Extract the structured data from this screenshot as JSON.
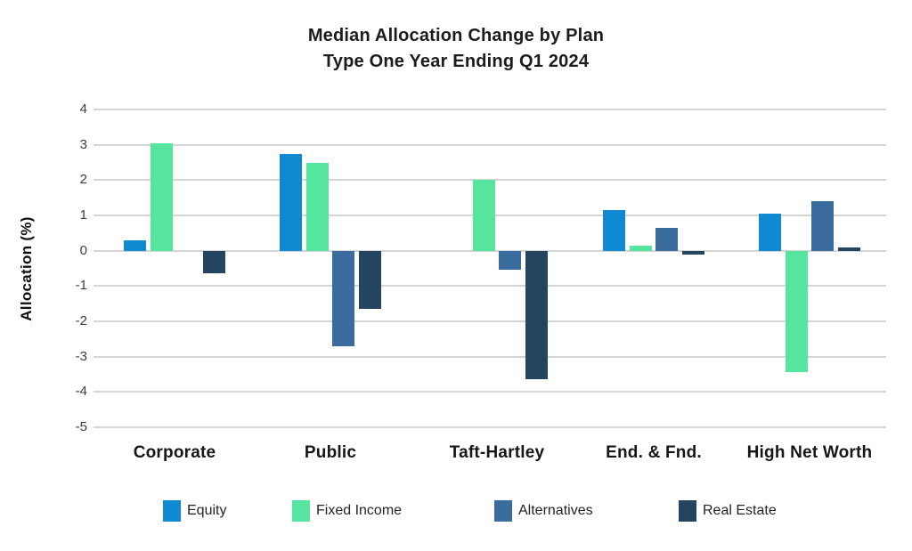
{
  "chart_data": {
    "type": "bar",
    "title": "Median Allocation Change by Plan Type One Year Ending Q1 2024",
    "title_line1": "Median Allocation Change by Plan",
    "title_line2": "Type One Year Ending Q1 2024",
    "ylabel": "Allocation (%)",
    "ylim": [
      -5,
      4
    ],
    "yticks": [
      4,
      3,
      2,
      1,
      0,
      -1,
      -2,
      -3,
      -4,
      -5
    ],
    "grid": true,
    "legend_position": "bottom",
    "categories": [
      "Corporate",
      "Public",
      "Taft-Hartley",
      "End. & Fnd.",
      "High Net Worth"
    ],
    "series": [
      {
        "name": "Equity",
        "color": "#0f89d1",
        "values": [
          0.3,
          2.75,
          0,
          1.15,
          1.05
        ]
      },
      {
        "name": "Fixed Income",
        "color": "#55e59e",
        "values": [
          3.05,
          2.5,
          2.0,
          0.15,
          -3.45
        ]
      },
      {
        "name": "Alternatives",
        "color": "#3a6d9d",
        "values": [
          0,
          -2.7,
          -0.55,
          0.65,
          1.4
        ]
      },
      {
        "name": "Real Estate",
        "color": "#24455f",
        "values": [
          -0.65,
          -1.65,
          -3.65,
          -0.1,
          0.1
        ]
      }
    ]
  }
}
